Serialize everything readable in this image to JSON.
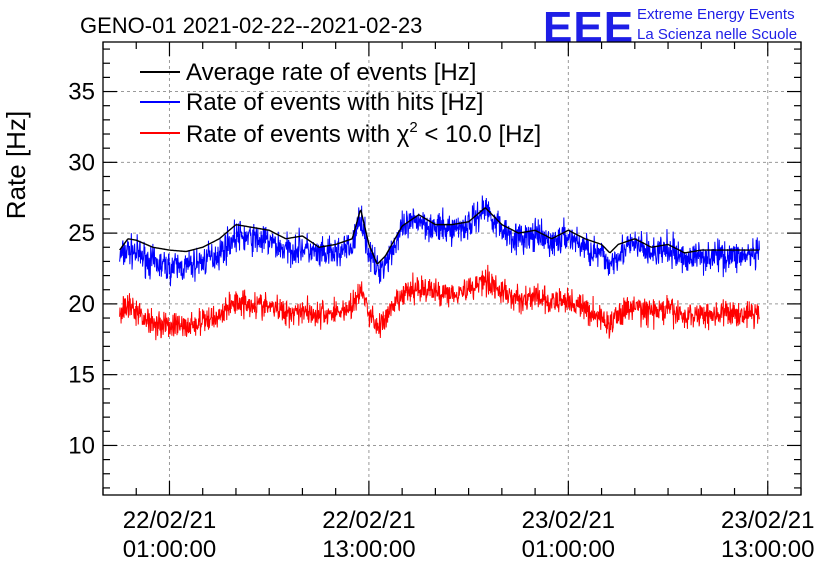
{
  "title": "GENO-01 2021-02-22--2021-02-23",
  "logo": {
    "mark": "EEE",
    "line1": "Extreme Energy Events",
    "line2": "La Scienza nelle Scuole"
  },
  "chart_data": {
    "type": "line",
    "ylabel": "Rate [Hz]",
    "xlabel": "",
    "ylim": [
      6.5,
      38.5
    ],
    "xlim_hours": [
      -4,
      38
    ],
    "y_ticks": [
      10,
      15,
      20,
      25,
      30,
      35
    ],
    "x_ticks": [
      {
        "label_date": "22/02/21",
        "label_time": "01:00:00",
        "hour": 0
      },
      {
        "label_date": "22/02/21",
        "label_time": "13:00:00",
        "hour": 12
      },
      {
        "label_date": "23/02/21",
        "label_time": "01:00:00",
        "hour": 24
      },
      {
        "label_date": "23/02/21",
        "label_time": "13:00:00",
        "hour": 36
      }
    ],
    "grid": true,
    "legend_position": "top-left",
    "series": [
      {
        "name": "Average rate of events [Hz]",
        "color": "#000000",
        "noise": 0,
        "x": [
          -3,
          -2.5,
          -2,
          -1,
          0,
          1,
          2,
          3,
          4,
          5,
          6,
          7,
          8,
          9,
          10,
          11,
          11.5,
          12,
          12.5,
          13,
          14,
          15,
          16,
          17,
          18,
          19,
          20,
          21,
          22,
          23,
          24,
          25,
          26,
          26.5,
          27,
          28,
          29,
          30,
          31,
          32,
          33,
          34,
          35,
          35.5
        ],
        "values": [
          23.8,
          24.6,
          24.5,
          24.0,
          23.8,
          23.7,
          24.0,
          24.6,
          25.6,
          25.4,
          25.2,
          24.6,
          24.8,
          24.0,
          24.2,
          24.6,
          26.7,
          24.2,
          22.8,
          23.4,
          25.5,
          26.3,
          25.6,
          25.6,
          25.8,
          26.8,
          25.6,
          25.0,
          25.2,
          24.6,
          25.2,
          24.6,
          24.2,
          23.6,
          24.2,
          24.6,
          24.0,
          24.2,
          23.6,
          23.8,
          23.8,
          23.8,
          23.8,
          23.8
        ]
      },
      {
        "name": "Rate of events with hits [Hz]",
        "color": "#0000ff",
        "noise": 1.1,
        "x": [
          -3,
          -2.5,
          -2,
          -1,
          0,
          1,
          2,
          3,
          4,
          5,
          6,
          7,
          8,
          9,
          10,
          11,
          11.5,
          12,
          12.5,
          13,
          14,
          15,
          16,
          17,
          18,
          19,
          20,
          21,
          22,
          23,
          24,
          25,
          26,
          26.5,
          27,
          28,
          29,
          30,
          31,
          32,
          33,
          34,
          35,
          35.5
        ],
        "values": [
          23.3,
          23.8,
          23.6,
          22.9,
          22.6,
          22.6,
          23.0,
          23.6,
          24.8,
          24.6,
          24.4,
          23.8,
          24.0,
          23.4,
          23.6,
          24.0,
          26.3,
          23.6,
          22.4,
          23.0,
          25.2,
          26.0,
          25.3,
          25.3,
          25.6,
          26.8,
          25.3,
          24.6,
          24.8,
          24.3,
          24.8,
          24.0,
          23.4,
          22.8,
          23.6,
          24.2,
          23.6,
          23.8,
          23.2,
          23.4,
          23.4,
          23.4,
          23.4,
          23.4
        ]
      },
      {
        "name": "Rate of events with χ2 < 10.0 [Hz]",
        "color": "#ff0000",
        "noise": 0.95,
        "x": [
          -3,
          -2.5,
          -2,
          -1,
          0,
          1,
          2,
          3,
          4,
          5,
          6,
          7,
          8,
          9,
          10,
          11,
          11.5,
          12,
          12.5,
          13,
          14,
          15,
          16,
          17,
          18,
          19,
          20,
          21,
          22,
          23,
          24,
          25,
          26,
          26.5,
          27,
          28,
          29,
          30,
          31,
          32,
          33,
          34,
          35,
          35.5
        ],
        "values": [
          19.2,
          19.8,
          19.4,
          18.7,
          18.5,
          18.4,
          18.7,
          19.2,
          20.2,
          20.0,
          19.8,
          19.4,
          19.6,
          19.2,
          19.4,
          19.8,
          21.0,
          19.4,
          18.4,
          18.9,
          20.6,
          21.2,
          20.8,
          20.8,
          21.0,
          21.8,
          20.8,
          20.3,
          20.5,
          20.0,
          20.3,
          19.6,
          19.0,
          18.5,
          19.3,
          19.8,
          19.4,
          19.6,
          19.1,
          19.3,
          19.3,
          19.3,
          19.3,
          19.3
        ]
      }
    ]
  }
}
